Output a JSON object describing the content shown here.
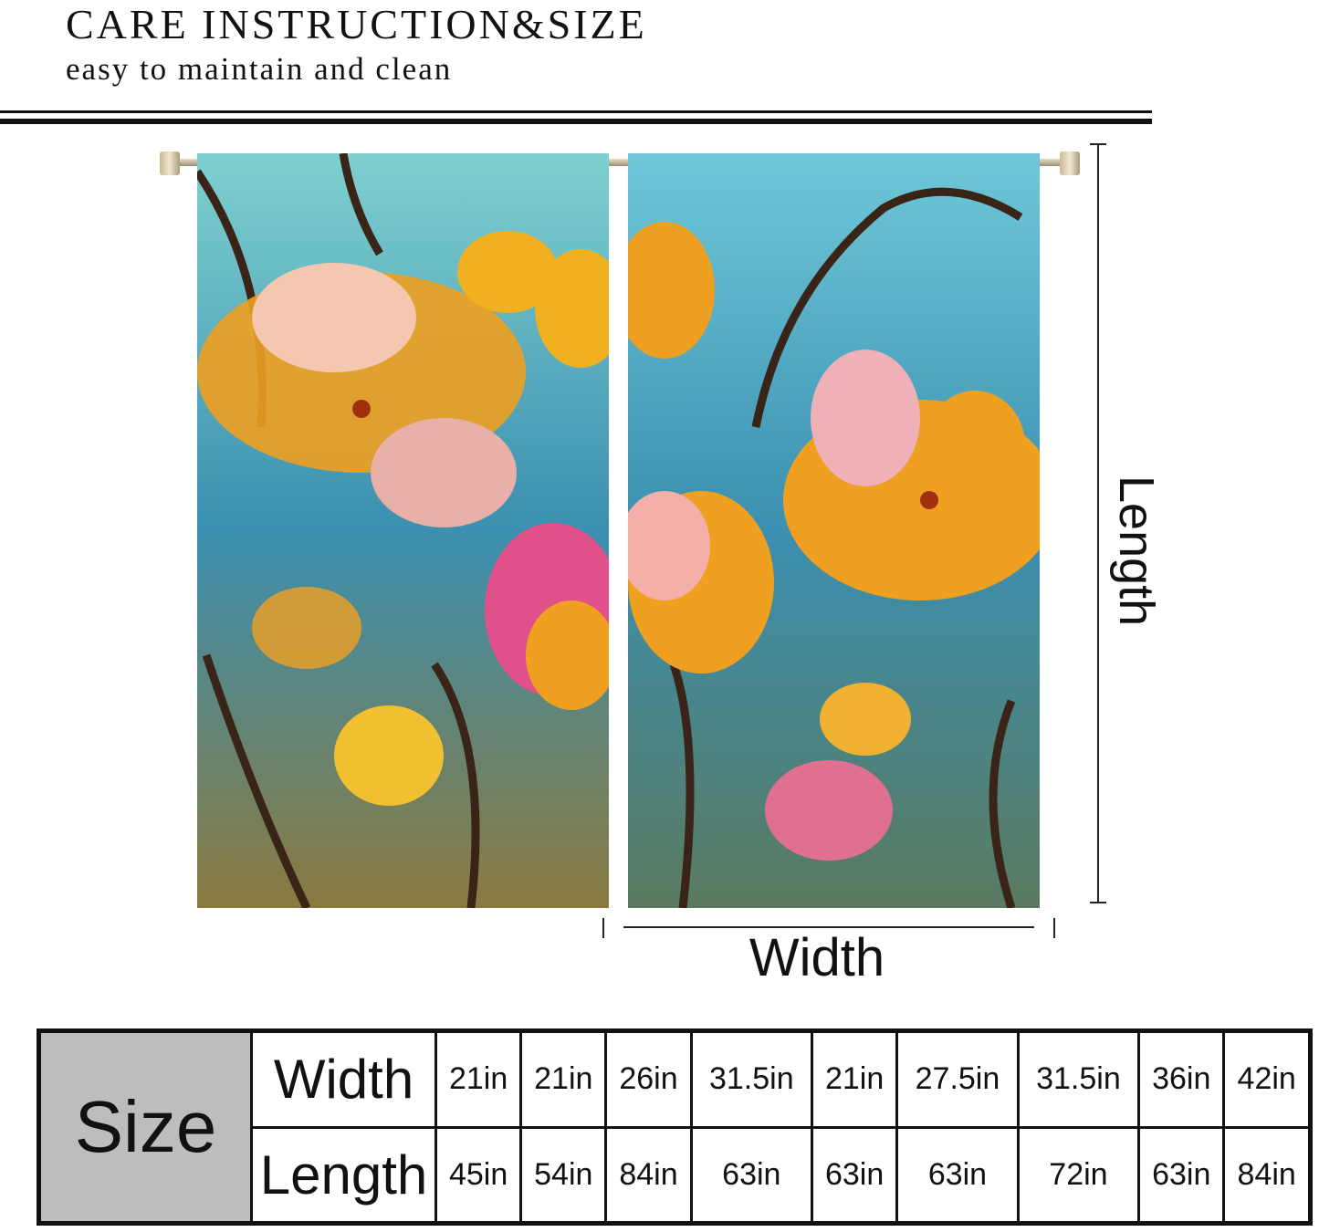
{
  "header": {
    "title": "CARE INSTRUCTION&SIZE",
    "subtitle": "easy to maintain and clean"
  },
  "dimensions": {
    "length_label": "Length",
    "width_label": "Width"
  },
  "colors": {
    "sky": "#5bb8c4",
    "teal": "#2f8fa8",
    "orange": "#f0a020",
    "pink": "#e0608a",
    "branch": "#3a2418",
    "table_header_bg": "#bdbdbd"
  },
  "size_table": {
    "heading": "Size",
    "rows": [
      {
        "label": "Width",
        "values": [
          "21in",
          "21in",
          "26in",
          "31.5in",
          "21in",
          "27.5in",
          "31.5in",
          "36in",
          "42in"
        ]
      },
      {
        "label": "Length",
        "values": [
          "45in",
          "54in",
          "84in",
          "63in",
          "63in",
          "63in",
          "72in",
          "63in",
          "84in"
        ]
      }
    ]
  }
}
